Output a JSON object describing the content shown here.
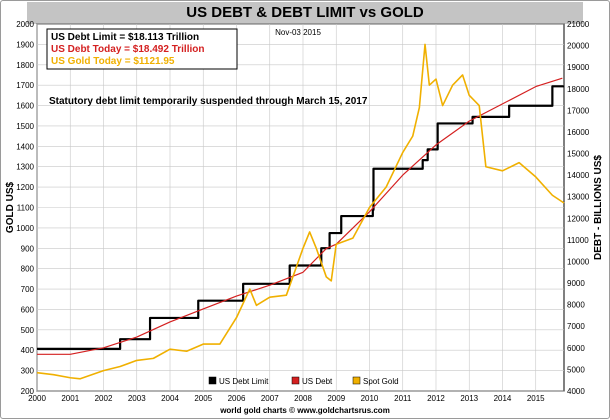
{
  "chart_data": {
    "type": "line",
    "title": "US DEBT & DEBT LIMIT vs GOLD",
    "date_label": "Nov-03  2015",
    "note": "Statutory debt limit temporarily suspended through March  15, 2017",
    "footer": "world gold charts © www.goldchartsrus.com",
    "info_box": [
      {
        "text": "US Debt Limit    = $18.113 Trillion",
        "color": "#000000"
      },
      {
        "text": "US Debt Today = $18.492 Trillion",
        "color": "#d42020"
      },
      {
        "text": "US Gold Today = $1121.95",
        "color": "#f0b000"
      }
    ],
    "ylabel_left": "GOLD US$",
    "ylabel_right": "DEBT - BILLIONS US$",
    "x_range": [
      2000,
      2015.85
    ],
    "x_ticks": [
      "2000",
      "2001",
      "2002",
      "2003",
      "2004",
      "2005",
      "2006",
      "2007",
      "2008",
      "2009",
      "2010",
      "2011",
      "2012",
      "2013",
      "2014",
      "2015"
    ],
    "ylim_left": [
      200,
      2000
    ],
    "left_ticks": [
      "200",
      "300",
      "400",
      "500",
      "600",
      "700",
      "800",
      "900",
      "1000",
      "1100",
      "1200",
      "1300",
      "1400",
      "1500",
      "1600",
      "1700",
      "1800",
      "1900",
      "2000"
    ],
    "ylim_right": [
      4000,
      21000
    ],
    "right_ticks": [
      "4000",
      "5000",
      "6000",
      "7000",
      "8000",
      "9000",
      "10000",
      "11000",
      "12000",
      "13000",
      "14000",
      "15000",
      "16000",
      "17000",
      "18000",
      "19000",
      "20000",
      "21000"
    ],
    "grid": true,
    "legend_position": "bottom",
    "series": [
      {
        "name": "US Debt Limit",
        "axis": "right",
        "color": "#000000",
        "step": true,
        "x": [
          2000.0,
          2002.5,
          2003.4,
          2004.85,
          2006.2,
          2007.6,
          2008.55,
          2008.8,
          2009.15,
          2010.1,
          2010.12,
          2011.6,
          2011.75,
          2012.05,
          2013.1,
          2014.2,
          2015.5,
          2015.85
        ],
        "y": [
          5950,
          6400,
          7384,
          8184,
          8965,
          9815,
          10615,
          11315,
          12104,
          12394,
          14294,
          14694,
          15194,
          16394,
          16699,
          17212,
          18113,
          18113
        ]
      },
      {
        "name": "US Debt",
        "axis": "right",
        "color": "#d42020",
        "x": [
          2000,
          2001,
          2002,
          2003,
          2004,
          2005,
          2006,
          2007,
          2008,
          2008.7,
          2009,
          2010,
          2011,
          2012,
          2013,
          2014,
          2015,
          2015.8
        ],
        "y": [
          5700,
          5700,
          6000,
          6500,
          7200,
          7800,
          8400,
          8900,
          9500,
          10600,
          10800,
          12300,
          14000,
          15400,
          16500,
          17300,
          18100,
          18492
        ]
      },
      {
        "name": "Spot Gold",
        "axis": "left",
        "color": "#f0b000",
        "x": [
          2000,
          2000.5,
          2001,
          2001.3,
          2002,
          2002.5,
          2003,
          2003.5,
          2004,
          2004.5,
          2005,
          2005.5,
          2006,
          2006.4,
          2006.6,
          2007,
          2007.5,
          2008,
          2008.2,
          2008.4,
          2008.7,
          2008.85,
          2009,
          2009.5,
          2010,
          2010.5,
          2011,
          2011.3,
          2011.5,
          2011.67,
          2011.8,
          2012,
          2012.2,
          2012.5,
          2012.8,
          2013,
          2013.3,
          2013.5,
          2014,
          2014.5,
          2015,
          2015.5,
          2015.85
        ],
        "y": [
          290,
          280,
          265,
          260,
          300,
          320,
          350,
          360,
          405,
          395,
          430,
          430,
          560,
          700,
          620,
          660,
          670,
          900,
          980,
          900,
          760,
          740,
          920,
          950,
          1100,
          1200,
          1370,
          1450,
          1590,
          1900,
          1700,
          1730,
          1600,
          1700,
          1750,
          1650,
          1600,
          1300,
          1280,
          1320,
          1250,
          1160,
          1122
        ]
      }
    ]
  }
}
